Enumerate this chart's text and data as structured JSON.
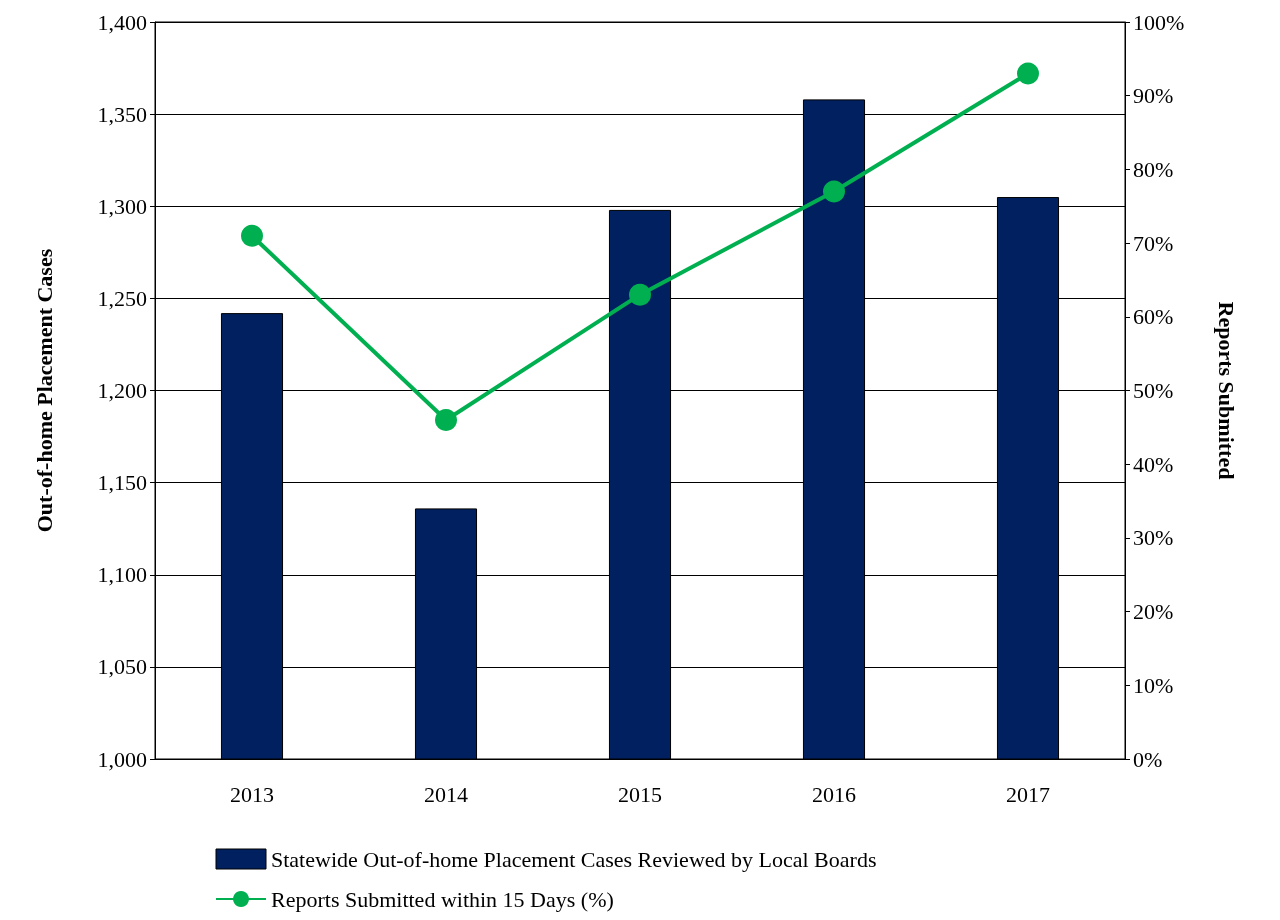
{
  "chart_data": {
    "type": "bar",
    "ylabel": "Out-of-home Placement Cases",
    "y2label": "Reports Submitted",
    "categories": [
      "2013",
      "2014",
      "2015",
      "2016",
      "2017"
    ],
    "series": [
      {
        "name": "Statewide Out-of-home Placement Cases Reviewed by Local Boards",
        "color": "#002060",
        "values": [
          1242,
          1136,
          1298,
          1358,
          1305
        ]
      },
      {
        "name": "Reports Submitted within 15 Days (%)",
        "type": "line",
        "axis": "y2",
        "color": "#00b050",
        "marker": "circle",
        "values": [
          71,
          46,
          63,
          77,
          93
        ]
      }
    ],
    "ylim": [
      1000,
      1400
    ],
    "yticks": [
      {
        "value": 1000,
        "label": "1,000"
      },
      {
        "value": 1050,
        "label": "1,050"
      },
      {
        "value": 1100,
        "label": "1,100"
      },
      {
        "value": 1150,
        "label": "1,150"
      },
      {
        "value": 1200,
        "label": "1,200"
      },
      {
        "value": 1250,
        "label": "1,250"
      },
      {
        "value": 1300,
        "label": "1,300"
      },
      {
        "value": 1350,
        "label": "1,350"
      },
      {
        "value": 1400,
        "label": "1,400"
      }
    ],
    "y2lim": [
      0,
      100
    ],
    "y2ticks": [
      {
        "value": 0,
        "label": "0%"
      },
      {
        "value": 10,
        "label": "10%"
      },
      {
        "value": 20,
        "label": "20%"
      },
      {
        "value": 30,
        "label": "30%"
      },
      {
        "value": 40,
        "label": "40%"
      },
      {
        "value": 50,
        "label": "50%"
      },
      {
        "value": 60,
        "label": "60%"
      },
      {
        "value": 70,
        "label": "70%"
      },
      {
        "value": 80,
        "label": "80%"
      },
      {
        "value": 90,
        "label": "90%"
      },
      {
        "value": 100,
        "label": "100%"
      }
    ],
    "grid": "y",
    "legend": "bottom"
  }
}
